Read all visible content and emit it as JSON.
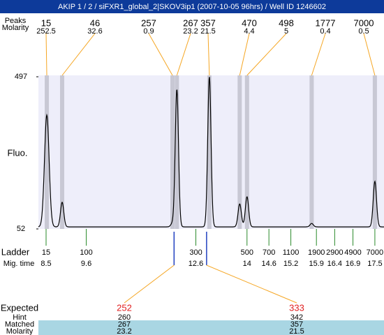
{
  "header": {
    "title": "AKIP 1 / 2 / siFXR1_global_2|SKOV3ip1 (2007-10-05 96hrs) / Well ID 1246602"
  },
  "top_rows": {
    "size_label": "Peaks",
    "molarity_label": "Molarity"
  },
  "plot": {
    "y_label": "Fluo.",
    "ylim": [
      52,
      497
    ],
    "yticks": [
      52,
      497
    ],
    "xlim": [
      8.29,
      17.75
    ],
    "baseline": 58
  },
  "peaks": [
    {
      "size": "15",
      "molarity": "252.5",
      "time": 8.52,
      "height": 385
    },
    {
      "size": "46",
      "molarity": "32.6",
      "time": 8.94,
      "height": 130
    },
    {
      "size": "257",
      "molarity": "0.9",
      "time": 11.96,
      "height": 68
    },
    {
      "size": "267",
      "molarity": "23.2",
      "time": 12.08,
      "height": 460
    },
    {
      "size": "357",
      "molarity": "21.5",
      "time": 12.97,
      "height": 497
    },
    {
      "size": "470",
      "molarity": "4.4",
      "time": 13.8,
      "height": 125
    },
    {
      "size": "498",
      "molarity": "5",
      "time": 14.0,
      "height": 146
    },
    {
      "size": "1777",
      "molarity": "0.4",
      "time": 15.77,
      "height": 68
    },
    {
      "size": "7000",
      "molarity": "0.5",
      "time": 17.5,
      "height": 191
    }
  ],
  "ladder": {
    "label": "Ladder",
    "time_label": "Mig. time",
    "entries": [
      {
        "size": "15",
        "time": 8.5
      },
      {
        "size": "100",
        "time": 9.6
      },
      {
        "size": "300",
        "time": 12.6
      },
      {
        "size": "500",
        "time": 14
      },
      {
        "size": "700",
        "time": 14.6
      },
      {
        "size": "1100",
        "time": 15.2
      },
      {
        "size": "1900",
        "time": 15.9
      },
      {
        "size": "2900",
        "time": 16.4
      },
      {
        "size": "4900",
        "time": 16.9
      },
      {
        "size": "7000",
        "time": 17.5
      }
    ]
  },
  "expected": {
    "labels": {
      "expected": "Expected",
      "hint": "Hint",
      "matched": "Matched",
      "molarity": "Molarity"
    },
    "columns": [
      {
        "expected": "252",
        "hint": "260",
        "matched": "267",
        "molarity": "23.2",
        "peak": 3
      },
      {
        "expected": "333",
        "hint": "342",
        "matched": "357",
        "molarity": "21.5",
        "peak": 4
      }
    ]
  }
}
